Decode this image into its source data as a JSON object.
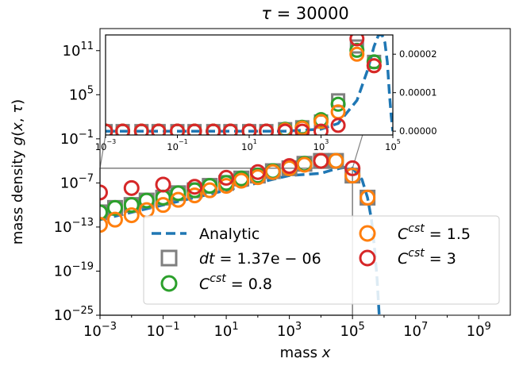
{
  "chart_data": {
    "type": "scatter",
    "title": "τ = 30000",
    "xlabel": "mass x",
    "ylabel": "mass density g(x, τ)",
    "xscale": "log",
    "yscale": "log",
    "xlim": [
      0.001,
      10000000000
    ],
    "ylim": [
      1e-25,
      100000000000000.0
    ],
    "xticks": [
      0.001,
      0.1,
      10,
      1000,
      100000,
      10000000,
      1000000000
    ],
    "xtick_labels": [
      "10^-3",
      "10^-1",
      "10^1",
      "10^3",
      "10^5",
      "10^7",
      "10^9"
    ],
    "yticks": [
      1e-25,
      1e-19,
      1e-13,
      1e-07,
      0.1,
      100000,
      100000000000
    ],
    "ytick_labels": [
      "10^-25",
      "10^-19",
      "10^-13",
      "10^-7",
      "10^-1",
      "10^5",
      "10^11"
    ],
    "legend": {
      "location": "lower-right",
      "ncols": 2
    },
    "colors": {
      "analytic": "#1f77b4",
      "dt": "#7f7f7f",
      "c08": "#2ca02c",
      "c15": "#ff7f0e",
      "c3": "#d62728",
      "frame": "#000000",
      "zoom_box": "#7f7f7f"
    },
    "series": [
      {
        "name": "Analytic",
        "name_math": {
          "base": "Analytic"
        },
        "style": "dashed-line",
        "color": "#1f77b4",
        "x": [
          0.001,
          1,
          1000,
          10000,
          20000,
          40000,
          60000,
          100000,
          200000,
          300000,
          400000,
          500000,
          600000,
          700000
        ],
        "y": [
          1e-12,
          1e-09,
          1e-06,
          2e-06,
          5e-06,
          1e-05,
          1.3e-05,
          1e-05,
          3e-07,
          1e-09,
          1e-12,
          1e-16,
          1e-20,
          1e-25
        ]
      },
      {
        "name": "dt = 1.37e-06",
        "name_math": {
          "base": "dt = 1.37e − 06"
        },
        "marker": "square",
        "color": "#7f7f7f",
        "x": [
          0.001,
          0.003,
          0.01,
          0.03,
          0.1,
          0.3,
          1,
          3,
          10,
          30,
          100,
          300,
          1000,
          3000,
          10000,
          30000,
          100000,
          300000
        ],
        "y": [
          1e-11,
          4e-11,
          1e-10,
          4e-10,
          1e-09,
          4e-09,
          1e-08,
          4e-08,
          1e-07,
          4e-07,
          1e-06,
          4e-06,
          1e-05,
          4e-05,
          0.0001,
          0.0001,
          1e-06,
          1e-09
        ]
      },
      {
        "name": "C^cst = 0.8",
        "name_math": {
          "base": "C",
          "sup": "cst",
          "rest": " = 0.8"
        },
        "marker": "circle",
        "color": "#2ca02c",
        "x": [
          0.001,
          0.003,
          0.01,
          0.03,
          0.1,
          0.3,
          1,
          3,
          10,
          30,
          100,
          300,
          1000,
          3000,
          10000,
          30000
        ],
        "y": [
          1e-11,
          4e-11,
          1e-10,
          4e-10,
          1e-09,
          4e-09,
          1e-08,
          4e-08,
          1e-07,
          4e-07,
          1e-06,
          4e-06,
          1e-05,
          4e-05,
          0.0001,
          0.0001
        ]
      },
      {
        "name": "C^cst = 1.5",
        "name_math": {
          "base": "C",
          "sup": "cst",
          "rest": " = 1.5"
        },
        "marker": "circle",
        "color": "#ff7f0e",
        "x": [
          0.001,
          0.003,
          0.01,
          0.03,
          0.1,
          0.3,
          1,
          3,
          10,
          30,
          100,
          300,
          1000,
          3000,
          10000,
          30000,
          100000,
          300000
        ],
        "y": [
          2e-13,
          1e-12,
          4e-12,
          2e-11,
          1e-10,
          5e-10,
          2e-09,
          1e-08,
          4e-08,
          2e-07,
          6e-07,
          3e-06,
          1e-05,
          3e-05,
          0.0001,
          0.0001,
          1e-06,
          1e-09
        ]
      },
      {
        "name": "C^cst = 3",
        "name_math": {
          "base": "C",
          "sup": "cst",
          "rest": " = 3"
        },
        "marker": "circle",
        "color": "#d62728",
        "x": [
          0.001,
          0.01,
          0.1,
          1,
          10,
          100,
          1000,
          10000,
          100000
        ],
        "y": [
          5e-09,
          2e-08,
          6e-08,
          3e-08,
          5e-07,
          3e-06,
          2e-05,
          0.0001,
          1e-05
        ]
      }
    ],
    "inset": {
      "xscale": "log",
      "yscale": "linear",
      "xlim": [
        0.001,
        100000
      ],
      "ylim": [
        -1e-06,
        2.5e-05
      ],
      "xticks": [
        0.001,
        0.1,
        10,
        1000,
        100000
      ],
      "xtick_labels": [
        "10^-3",
        "10^-1",
        "10^1",
        "10^3",
        "10^5"
      ],
      "yticks": [
        0,
        1e-05,
        2e-05
      ],
      "ytick_labels": [
        "0.00000",
        "0.00001",
        "0.00002"
      ],
      "analytic": {
        "x": [
          0.001,
          1,
          100,
          1000,
          3000,
          10000,
          20000,
          30000,
          40000,
          50000,
          60000,
          70000,
          80000,
          90000,
          100000
        ],
        "y": [
          0,
          0,
          0,
          5e-07,
          2e-06,
          8e-06,
          1.6e-05,
          2.2e-05,
          2.5e-05,
          2.5e-05,
          2.3e-05,
          1.8e-05,
          1e-05,
          4e-06,
          0
        ]
      },
      "series": [
        {
          "name": "dt = 1.37e-06",
          "marker": "square",
          "color": "#7f7f7f",
          "x": [
            0.001,
            0.003,
            0.01,
            0.03,
            0.1,
            0.3,
            1,
            3,
            10,
            30,
            100,
            300,
            1000,
            3000,
            10000,
            30000
          ],
          "y": [
            0,
            0,
            0,
            0,
            0,
            0,
            0,
            0,
            0,
            0,
            5e-07,
            1e-06,
            2.5e-06,
            8e-06,
            2.2e-05,
            1.8e-05
          ]
        },
        {
          "name": "C^cst = 0.8",
          "marker": "circle",
          "color": "#2ca02c",
          "x": [
            0.001,
            0.003,
            0.01,
            0.03,
            0.1,
            0.3,
            1,
            3,
            10,
            30,
            100,
            300,
            1000,
            3000,
            10000,
            30000
          ],
          "y": [
            0,
            0,
            0,
            0,
            0,
            0,
            0,
            0,
            0,
            0,
            5e-07,
            1e-06,
            3e-06,
            7e-06,
            2.1e-05,
            1.8e-05
          ]
        },
        {
          "name": "C^cst = 1.5",
          "marker": "circle",
          "color": "#ff7f0e",
          "x": [
            0.001,
            0.003,
            0.01,
            0.03,
            0.1,
            0.3,
            1,
            3,
            10,
            30,
            100,
            300,
            1000,
            3000,
            10000,
            30000
          ],
          "y": [
            0,
            0,
            0,
            0,
            0,
            0,
            0,
            0,
            0,
            0,
            3e-07,
            8e-07,
            2.5e-06,
            5e-06,
            2e-05,
            1.7e-05
          ]
        },
        {
          "name": "C^cst = 3",
          "marker": "circle",
          "color": "#d62728",
          "x": [
            0.001,
            0.003,
            0.01,
            0.03,
            0.1,
            0.3,
            1,
            3,
            10,
            30,
            100,
            300,
            1000,
            3000,
            10000,
            30000
          ],
          "y": [
            0,
            0,
            0,
            0,
            0,
            0,
            0,
            0,
            0,
            0,
            0,
            0,
            0,
            1.5e-06,
            2.4e-05,
            1.7e-05
          ]
        }
      ]
    }
  }
}
